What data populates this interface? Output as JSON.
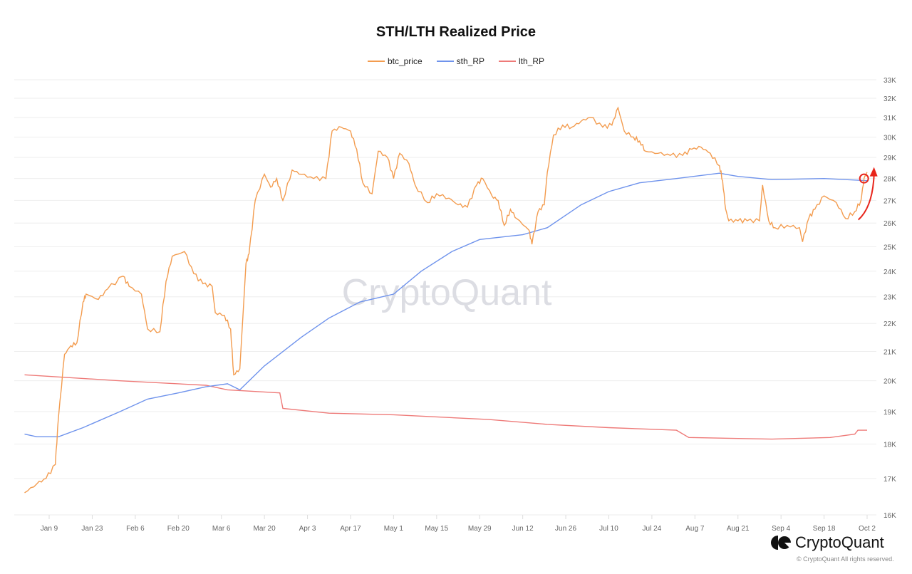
{
  "chart_data": {
    "type": "line",
    "title": "STH/LTH Realized Price",
    "xlabel": "",
    "ylabel": "",
    "y_scale": "log",
    "ylim": [
      16000,
      33000
    ],
    "yticks": [
      "16K",
      "17K",
      "18K",
      "19K",
      "20K",
      "21K",
      "22K",
      "23K",
      "24K",
      "25K",
      "26K",
      "27K",
      "28K",
      "29K",
      "30K",
      "31K",
      "32K",
      "33K"
    ],
    "xticks": [
      "Jan 9",
      "Jan 23",
      "Feb 6",
      "Feb 20",
      "Mar 6",
      "Mar 20",
      "Apr 3",
      "Apr 17",
      "May 1",
      "May 15",
      "May 29",
      "Jun 12",
      "Jun 26",
      "Jul 10",
      "Jul 24",
      "Aug 7",
      "Aug 21",
      "Sep 4",
      "Sep 18",
      "Oct 2"
    ],
    "xlim": [
      "2023-01-01",
      "2023-10-02"
    ],
    "grid": true,
    "legend_position": "top",
    "watermark": "CryptoQuant",
    "series": [
      {
        "name": "btc_price",
        "color": "#f39c4f",
        "points": [
          [
            "2023-01-01",
            16600
          ],
          [
            "2023-01-05",
            16850
          ],
          [
            "2023-01-08",
            17000
          ],
          [
            "2023-01-11",
            17400
          ],
          [
            "2023-01-12",
            18800
          ],
          [
            "2023-01-14",
            20900
          ],
          [
            "2023-01-16",
            21200
          ],
          [
            "2023-01-18",
            21300
          ],
          [
            "2023-01-20",
            22800
          ],
          [
            "2023-01-21",
            23100
          ],
          [
            "2023-01-25",
            22900
          ],
          [
            "2023-01-28",
            23300
          ],
          [
            "2023-02-02",
            23800
          ],
          [
            "2023-02-04",
            23400
          ],
          [
            "2023-02-08",
            23100
          ],
          [
            "2023-02-10",
            21800
          ],
          [
            "2023-02-14",
            21700
          ],
          [
            "2023-02-16",
            23600
          ],
          [
            "2023-02-18",
            24600
          ],
          [
            "2023-02-22",
            24800
          ],
          [
            "2023-02-25",
            23900
          ],
          [
            "2023-02-28",
            23500
          ],
          [
            "2023-03-03",
            23400
          ],
          [
            "2023-03-04",
            22400
          ],
          [
            "2023-03-07",
            22300
          ],
          [
            "2023-03-09",
            21800
          ],
          [
            "2023-03-10",
            20200
          ],
          [
            "2023-03-12",
            20400
          ],
          [
            "2023-03-14",
            24300
          ],
          [
            "2023-03-15",
            24700
          ],
          [
            "2023-03-17",
            27000
          ],
          [
            "2023-03-20",
            28200
          ],
          [
            "2023-03-22",
            27600
          ],
          [
            "2023-03-24",
            28000
          ],
          [
            "2023-03-26",
            27000
          ],
          [
            "2023-03-29",
            28400
          ],
          [
            "2023-04-01",
            28200
          ],
          [
            "2023-04-05",
            28000
          ],
          [
            "2023-04-09",
            28000
          ],
          [
            "2023-04-11",
            30300
          ],
          [
            "2023-04-14",
            30500
          ],
          [
            "2023-04-17",
            30300
          ],
          [
            "2023-04-19",
            29400
          ],
          [
            "2023-04-21",
            27800
          ],
          [
            "2023-04-24",
            27300
          ],
          [
            "2023-04-26",
            29300
          ],
          [
            "2023-04-29",
            29000
          ],
          [
            "2023-05-01",
            28000
          ],
          [
            "2023-05-03",
            29200
          ],
          [
            "2023-05-06",
            28700
          ],
          [
            "2023-05-08",
            27700
          ],
          [
            "2023-05-12",
            26900
          ],
          [
            "2023-05-15",
            27300
          ],
          [
            "2023-05-19",
            27100
          ],
          [
            "2023-05-22",
            26800
          ],
          [
            "2023-05-25",
            26700
          ],
          [
            "2023-05-28",
            27700
          ],
          [
            "2023-05-30",
            28000
          ],
          [
            "2023-06-02",
            27200
          ],
          [
            "2023-06-04",
            27000
          ],
          [
            "2023-06-06",
            25900
          ],
          [
            "2023-06-08",
            26600
          ],
          [
            "2023-06-10",
            26200
          ],
          [
            "2023-06-14",
            25700
          ],
          [
            "2023-06-15",
            25100
          ],
          [
            "2023-06-17",
            26500
          ],
          [
            "2023-06-19",
            26800
          ],
          [
            "2023-06-20",
            28300
          ],
          [
            "2023-06-22",
            30100
          ],
          [
            "2023-06-25",
            30600
          ],
          [
            "2023-06-28",
            30500
          ],
          [
            "2023-07-01",
            30800
          ],
          [
            "2023-07-04",
            31000
          ],
          [
            "2023-07-08",
            30500
          ],
          [
            "2023-07-11",
            30600
          ],
          [
            "2023-07-13",
            31500
          ],
          [
            "2023-07-15",
            30300
          ],
          [
            "2023-07-18",
            30000
          ],
          [
            "2023-07-20",
            29800
          ],
          [
            "2023-07-22",
            29300
          ],
          [
            "2023-07-26",
            29200
          ],
          [
            "2023-07-30",
            29100
          ],
          [
            "2023-08-03",
            29100
          ],
          [
            "2023-08-06",
            29400
          ],
          [
            "2023-08-09",
            29500
          ],
          [
            "2023-08-12",
            29200
          ],
          [
            "2023-08-15",
            28600
          ],
          [
            "2023-08-16",
            27900
          ],
          [
            "2023-08-17",
            26600
          ],
          [
            "2023-08-18",
            26100
          ],
          [
            "2023-08-21",
            26100
          ],
          [
            "2023-08-24",
            26100
          ],
          [
            "2023-08-28",
            26100
          ],
          [
            "2023-08-29",
            27700
          ],
          [
            "2023-08-31",
            26100
          ],
          [
            "2023-09-02",
            25800
          ],
          [
            "2023-09-06",
            25900
          ],
          [
            "2023-09-10",
            25800
          ],
          [
            "2023-09-11",
            25200
          ],
          [
            "2023-09-13",
            26200
          ],
          [
            "2023-09-15",
            26600
          ],
          [
            "2023-09-18",
            27200
          ],
          [
            "2023-09-22",
            26900
          ],
          [
            "2023-09-25",
            26200
          ],
          [
            "2023-09-28",
            26500
          ],
          [
            "2023-09-30",
            27000
          ],
          [
            "2023-10-01",
            28000
          ],
          [
            "2023-10-02",
            28300
          ]
        ]
      },
      {
        "name": "sth_RP",
        "color": "#6f93ec",
        "points": [
          [
            "2023-01-01",
            18300
          ],
          [
            "2023-01-05",
            18220
          ],
          [
            "2023-01-12",
            18220
          ],
          [
            "2023-01-20",
            18500
          ],
          [
            "2023-02-01",
            19000
          ],
          [
            "2023-02-10",
            19400
          ],
          [
            "2023-02-20",
            19600
          ],
          [
            "2023-03-01",
            19800
          ],
          [
            "2023-03-08",
            19900
          ],
          [
            "2023-03-12",
            19700
          ],
          [
            "2023-03-20",
            20500
          ],
          [
            "2023-04-01",
            21500
          ],
          [
            "2023-04-10",
            22200
          ],
          [
            "2023-04-20",
            22800
          ],
          [
            "2023-05-01",
            23100
          ],
          [
            "2023-05-10",
            24000
          ],
          [
            "2023-05-20",
            24800
          ],
          [
            "2023-05-29",
            25300
          ],
          [
            "2023-06-12",
            25500
          ],
          [
            "2023-06-20",
            25800
          ],
          [
            "2023-07-01",
            26800
          ],
          [
            "2023-07-10",
            27400
          ],
          [
            "2023-07-20",
            27800
          ],
          [
            "2023-08-01",
            28000
          ],
          [
            "2023-08-15",
            28250
          ],
          [
            "2023-08-21",
            28100
          ],
          [
            "2023-09-01",
            27950
          ],
          [
            "2023-09-18",
            28000
          ],
          [
            "2023-10-02",
            27900
          ]
        ]
      },
      {
        "name": "lth_RP",
        "color": "#ee7a78",
        "points": [
          [
            "2023-01-01",
            20200
          ],
          [
            "2023-02-01",
            20000
          ],
          [
            "2023-03-01",
            19850
          ],
          [
            "2023-03-08",
            19700
          ],
          [
            "2023-03-25",
            19600
          ],
          [
            "2023-03-26",
            19100
          ],
          [
            "2023-04-10",
            18950
          ],
          [
            "2023-05-01",
            18900
          ],
          [
            "2023-06-01",
            18750
          ],
          [
            "2023-06-20",
            18600
          ],
          [
            "2023-07-10",
            18500
          ],
          [
            "2023-08-01",
            18420
          ],
          [
            "2023-08-05",
            18200
          ],
          [
            "2023-09-01",
            18150
          ],
          [
            "2023-09-20",
            18200
          ],
          [
            "2023-09-28",
            18300
          ],
          [
            "2023-09-29",
            18420
          ],
          [
            "2023-10-02",
            18420
          ]
        ]
      }
    ],
    "annotations": [
      {
        "type": "circle-and-arrow",
        "color": "#e8251b",
        "date": "2023-10-01",
        "value": 28000
      }
    ]
  },
  "footer": {
    "brand": "CryptoQuant",
    "copyright": "© CryptoQuant All rights reserved."
  }
}
